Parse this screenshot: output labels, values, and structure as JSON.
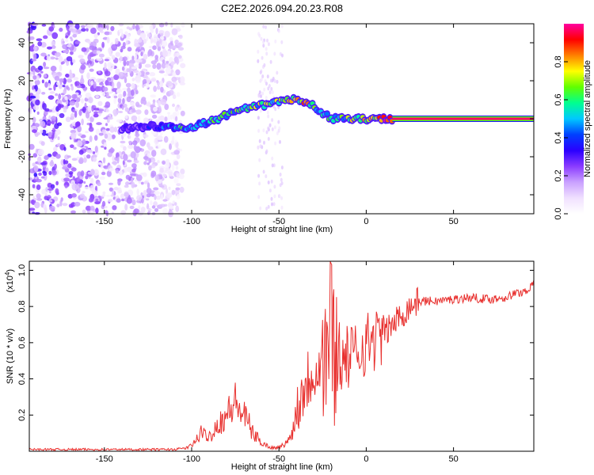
{
  "chart_data": [
    {
      "type": "heatmap",
      "title": "C2E2.2026.094.20.23.R08",
      "xlabel": "Height of straight line (km)",
      "ylabel": "Frequency (Hz)",
      "xlim": [
        -193,
        96
      ],
      "ylim": [
        -50,
        50
      ],
      "x_ticks": [
        "-150",
        "-100",
        "-50",
        "0",
        "50"
      ],
      "x_tick_values": [
        -150,
        -100,
        -50,
        0,
        50
      ],
      "y_ticks": [
        "-40",
        "-20",
        "0",
        "20",
        "40"
      ],
      "y_tick_values": [
        -40,
        -20,
        0,
        20,
        40
      ],
      "colorbar": {
        "label": "Normalized spectral amplitude",
        "range": [
          0,
          1
        ],
        "ticks": [
          "0.0",
          "0.2",
          "0.4",
          "0.6",
          "0.8"
        ],
        "tick_values": [
          0,
          0.2,
          0.4,
          0.6,
          0.8
        ],
        "colors": [
          "#ffffff",
          "#f0e0ff",
          "#c9a0ff",
          "#8a3bff",
          "#2a00ff",
          "#0040ff",
          "#00c8ff",
          "#00ff90",
          "#60ff00",
          "#ffff00",
          "#ff8000",
          "#ff0000",
          "#ff00a0"
        ]
      },
      "ridge": {
        "description_points_x": [
          -140,
          -120,
          -105,
          -100,
          -90,
          -80,
          -70,
          -60,
          -50,
          -42,
          -35,
          -30,
          -25,
          -20,
          -10,
          0,
          10,
          15,
          96
        ],
        "frequency_y": [
          -5,
          -4,
          -5,
          -4,
          -2,
          2,
          5,
          7,
          9,
          10,
          8,
          7,
          3,
          0,
          0,
          0,
          0,
          0,
          0
        ],
        "amplitude": [
          0.25,
          0.35,
          0.55,
          0.45,
          0.55,
          0.6,
          0.6,
          0.65,
          0.7,
          0.7,
          0.75,
          0.7,
          0.5,
          0.6,
          0.65,
          0.7,
          0.8,
          1.0,
          1.0
        ]
      },
      "noise_region_x": [
        -193,
        -105
      ]
    },
    {
      "type": "line",
      "title": "",
      "xlabel": "Height of straight line (km)",
      "ylabel": "SNR (10 * v/v)",
      "y_multiplier_label": "(x10",
      "y_multiplier_exp": "4",
      "y_multiplier_close": ")",
      "xlim": [
        -193,
        96
      ],
      "ylim": [
        0,
        1.05
      ],
      "x_ticks": [
        "-150",
        "-100",
        "-50",
        "0",
        "50"
      ],
      "x_tick_values": [
        -150,
        -100,
        -50,
        0,
        50
      ],
      "y_ticks": [
        "0.2",
        "0.4",
        "0.6",
        "0.8",
        "1.0"
      ],
      "y_tick_values": [
        0.2,
        0.4,
        0.6,
        0.8,
        1.0
      ],
      "series": [
        {
          "name": "SNR",
          "color": "#e8302e",
          "x": [
            -193,
            -150,
            -110,
            -102,
            -98,
            -95,
            -90,
            -85,
            -80,
            -75,
            -72,
            -68,
            -65,
            -60,
            -55,
            -50,
            -45,
            -42,
            -40,
            -38,
            -35,
            -30,
            -25,
            -22,
            -20,
            -18,
            -15,
            -10,
            -5,
            0,
            5,
            10,
            15,
            20,
            25,
            30,
            40,
            50,
            60,
            70,
            80,
            85,
            90,
            93,
            96
          ],
          "y": [
            0.01,
            0.01,
            0.01,
            0.02,
            0.05,
            0.1,
            0.08,
            0.15,
            0.2,
            0.27,
            0.22,
            0.17,
            0.1,
            0.05,
            0.02,
            0.02,
            0.05,
            0.12,
            0.22,
            0.3,
            0.38,
            0.45,
            0.5,
            0.6,
            0.75,
            0.55,
            0.5,
            0.52,
            0.55,
            0.6,
            0.62,
            0.65,
            0.7,
            0.75,
            0.8,
            0.83,
            0.83,
            0.84,
            0.85,
            0.84,
            0.85,
            0.87,
            0.88,
            0.9,
            0.92
          ]
        }
      ]
    }
  ]
}
